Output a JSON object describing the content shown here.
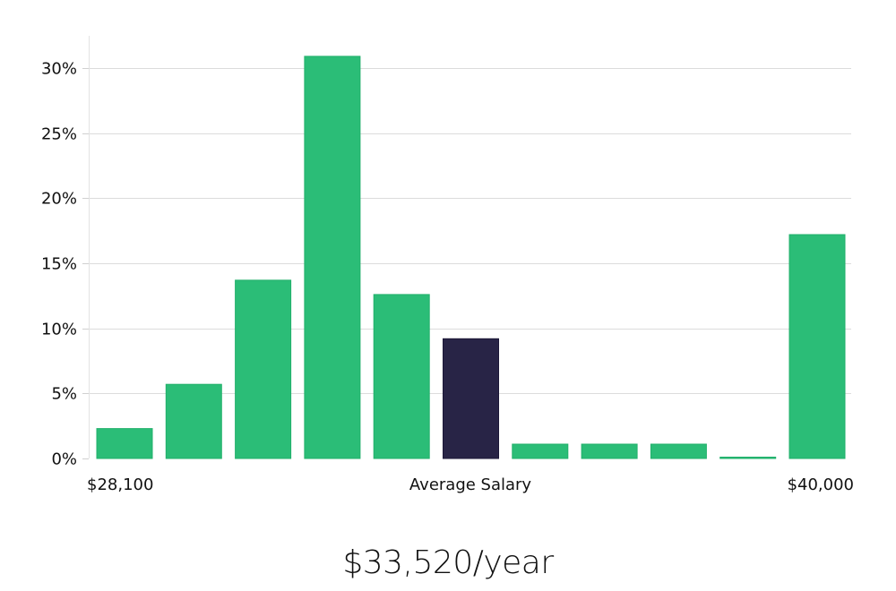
{
  "chart_data": {
    "type": "bar",
    "title": "",
    "xlabel": "Average Salary",
    "ylabel": "",
    "x_min_label": "$28,100",
    "x_max_label": "$40,000",
    "values": [
      2.3,
      5.7,
      13.7,
      30.9,
      12.6,
      9.2,
      1.1,
      1.1,
      1.1,
      0.1,
      17.2
    ],
    "highlight_index": 5,
    "ylim": [
      0,
      32
    ],
    "yticks": [
      0,
      5,
      10,
      15,
      20,
      25,
      30
    ],
    "ytick_labels": [
      "0%",
      "5%",
      "10%",
      "15%",
      "20%",
      "25%",
      "30%"
    ],
    "grid": true,
    "colors": {
      "bar": "#2bbd77",
      "bar_stroke": "#22b06b",
      "highlight": "#282446"
    }
  },
  "summary": {
    "salary_text": "$33,520/year"
  }
}
